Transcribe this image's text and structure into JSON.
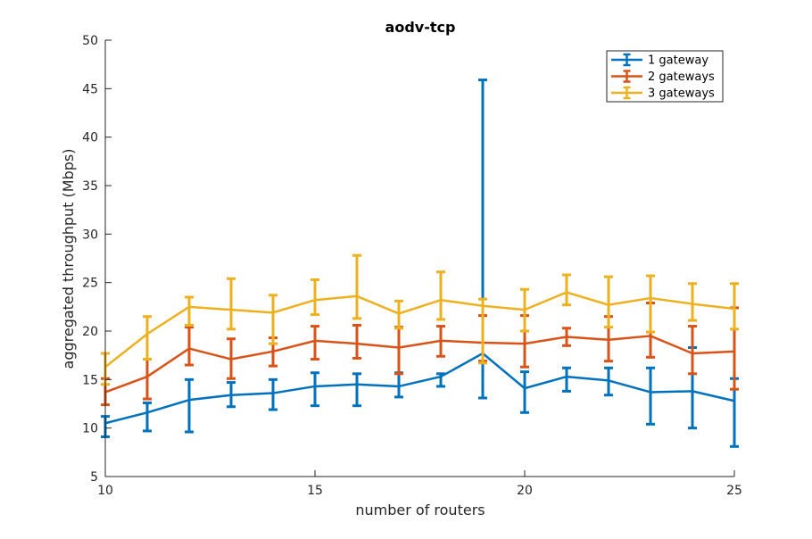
{
  "chart_data": {
    "type": "line",
    "title": "aodv-tcp",
    "xlabel": "number of routers",
    "ylabel": "aggregated throughput (Mbps)",
    "xlim": [
      10,
      25
    ],
    "ylim": [
      5,
      50
    ],
    "xticks": [
      "10",
      "15",
      "20",
      "25"
    ],
    "yticks": [
      "5",
      "10",
      "15",
      "20",
      "25",
      "30",
      "35",
      "40",
      "45",
      "50"
    ],
    "grid": false,
    "legend_position": "top-right",
    "x": [
      10,
      11,
      12,
      13,
      14,
      15,
      16,
      17,
      18,
      19,
      20,
      21,
      22,
      23,
      24,
      25
    ],
    "series": [
      {
        "name": "1 gateway",
        "color": "#0072BD",
        "values": [
          10.5,
          11.6,
          12.9,
          13.4,
          13.6,
          14.3,
          14.5,
          14.3,
          15.3,
          17.7,
          14.1,
          15.3,
          14.9,
          13.7,
          13.8,
          12.8
        ],
        "lower": [
          9.1,
          9.7,
          9.6,
          12.2,
          11.9,
          12.3,
          12.3,
          13.2,
          14.3,
          13.1,
          11.6,
          13.8,
          13.4,
          10.4,
          10.0,
          8.1
        ],
        "upper": [
          11.2,
          12.6,
          15.0,
          14.7,
          15.0,
          15.7,
          15.6,
          15.7,
          15.6,
          45.9,
          15.8,
          16.2,
          16.2,
          16.2,
          18.3,
          15.1
        ]
      },
      {
        "name": "2 gateways",
        "color": "#D95319",
        "values": [
          13.7,
          15.3,
          18.2,
          17.1,
          17.9,
          19.0,
          18.7,
          18.3,
          19.0,
          18.8,
          18.7,
          19.4,
          19.1,
          19.5,
          17.7,
          17.9
        ],
        "lower": [
          12.4,
          13.0,
          16.5,
          15.1,
          16.4,
          17.1,
          17.2,
          15.6,
          17.4,
          16.9,
          16.3,
          18.5,
          16.9,
          17.3,
          15.6,
          14.0
        ],
        "upper": [
          15.1,
          17.1,
          20.4,
          19.2,
          19.3,
          20.5,
          20.6,
          20.4,
          20.5,
          21.6,
          21.6,
          20.3,
          21.5,
          22.9,
          20.5,
          22.4
        ]
      },
      {
        "name": "3 gateways",
        "color": "#EDB120",
        "values": [
          16.3,
          19.7,
          22.5,
          22.2,
          21.9,
          23.2,
          23.6,
          21.8,
          23.2,
          22.6,
          22.2,
          24.0,
          22.7,
          23.4,
          22.8,
          22.3
        ],
        "lower": [
          14.5,
          17.1,
          20.6,
          20.2,
          18.7,
          21.7,
          21.3,
          20.3,
          21.2,
          16.7,
          20.0,
          22.7,
          20.4,
          19.9,
          21.1,
          20.2
        ],
        "upper": [
          17.7,
          21.5,
          23.5,
          25.4,
          23.7,
          25.3,
          27.8,
          23.1,
          26.1,
          23.3,
          24.3,
          25.8,
          25.6,
          25.7,
          24.9,
          24.9
        ]
      }
    ]
  }
}
